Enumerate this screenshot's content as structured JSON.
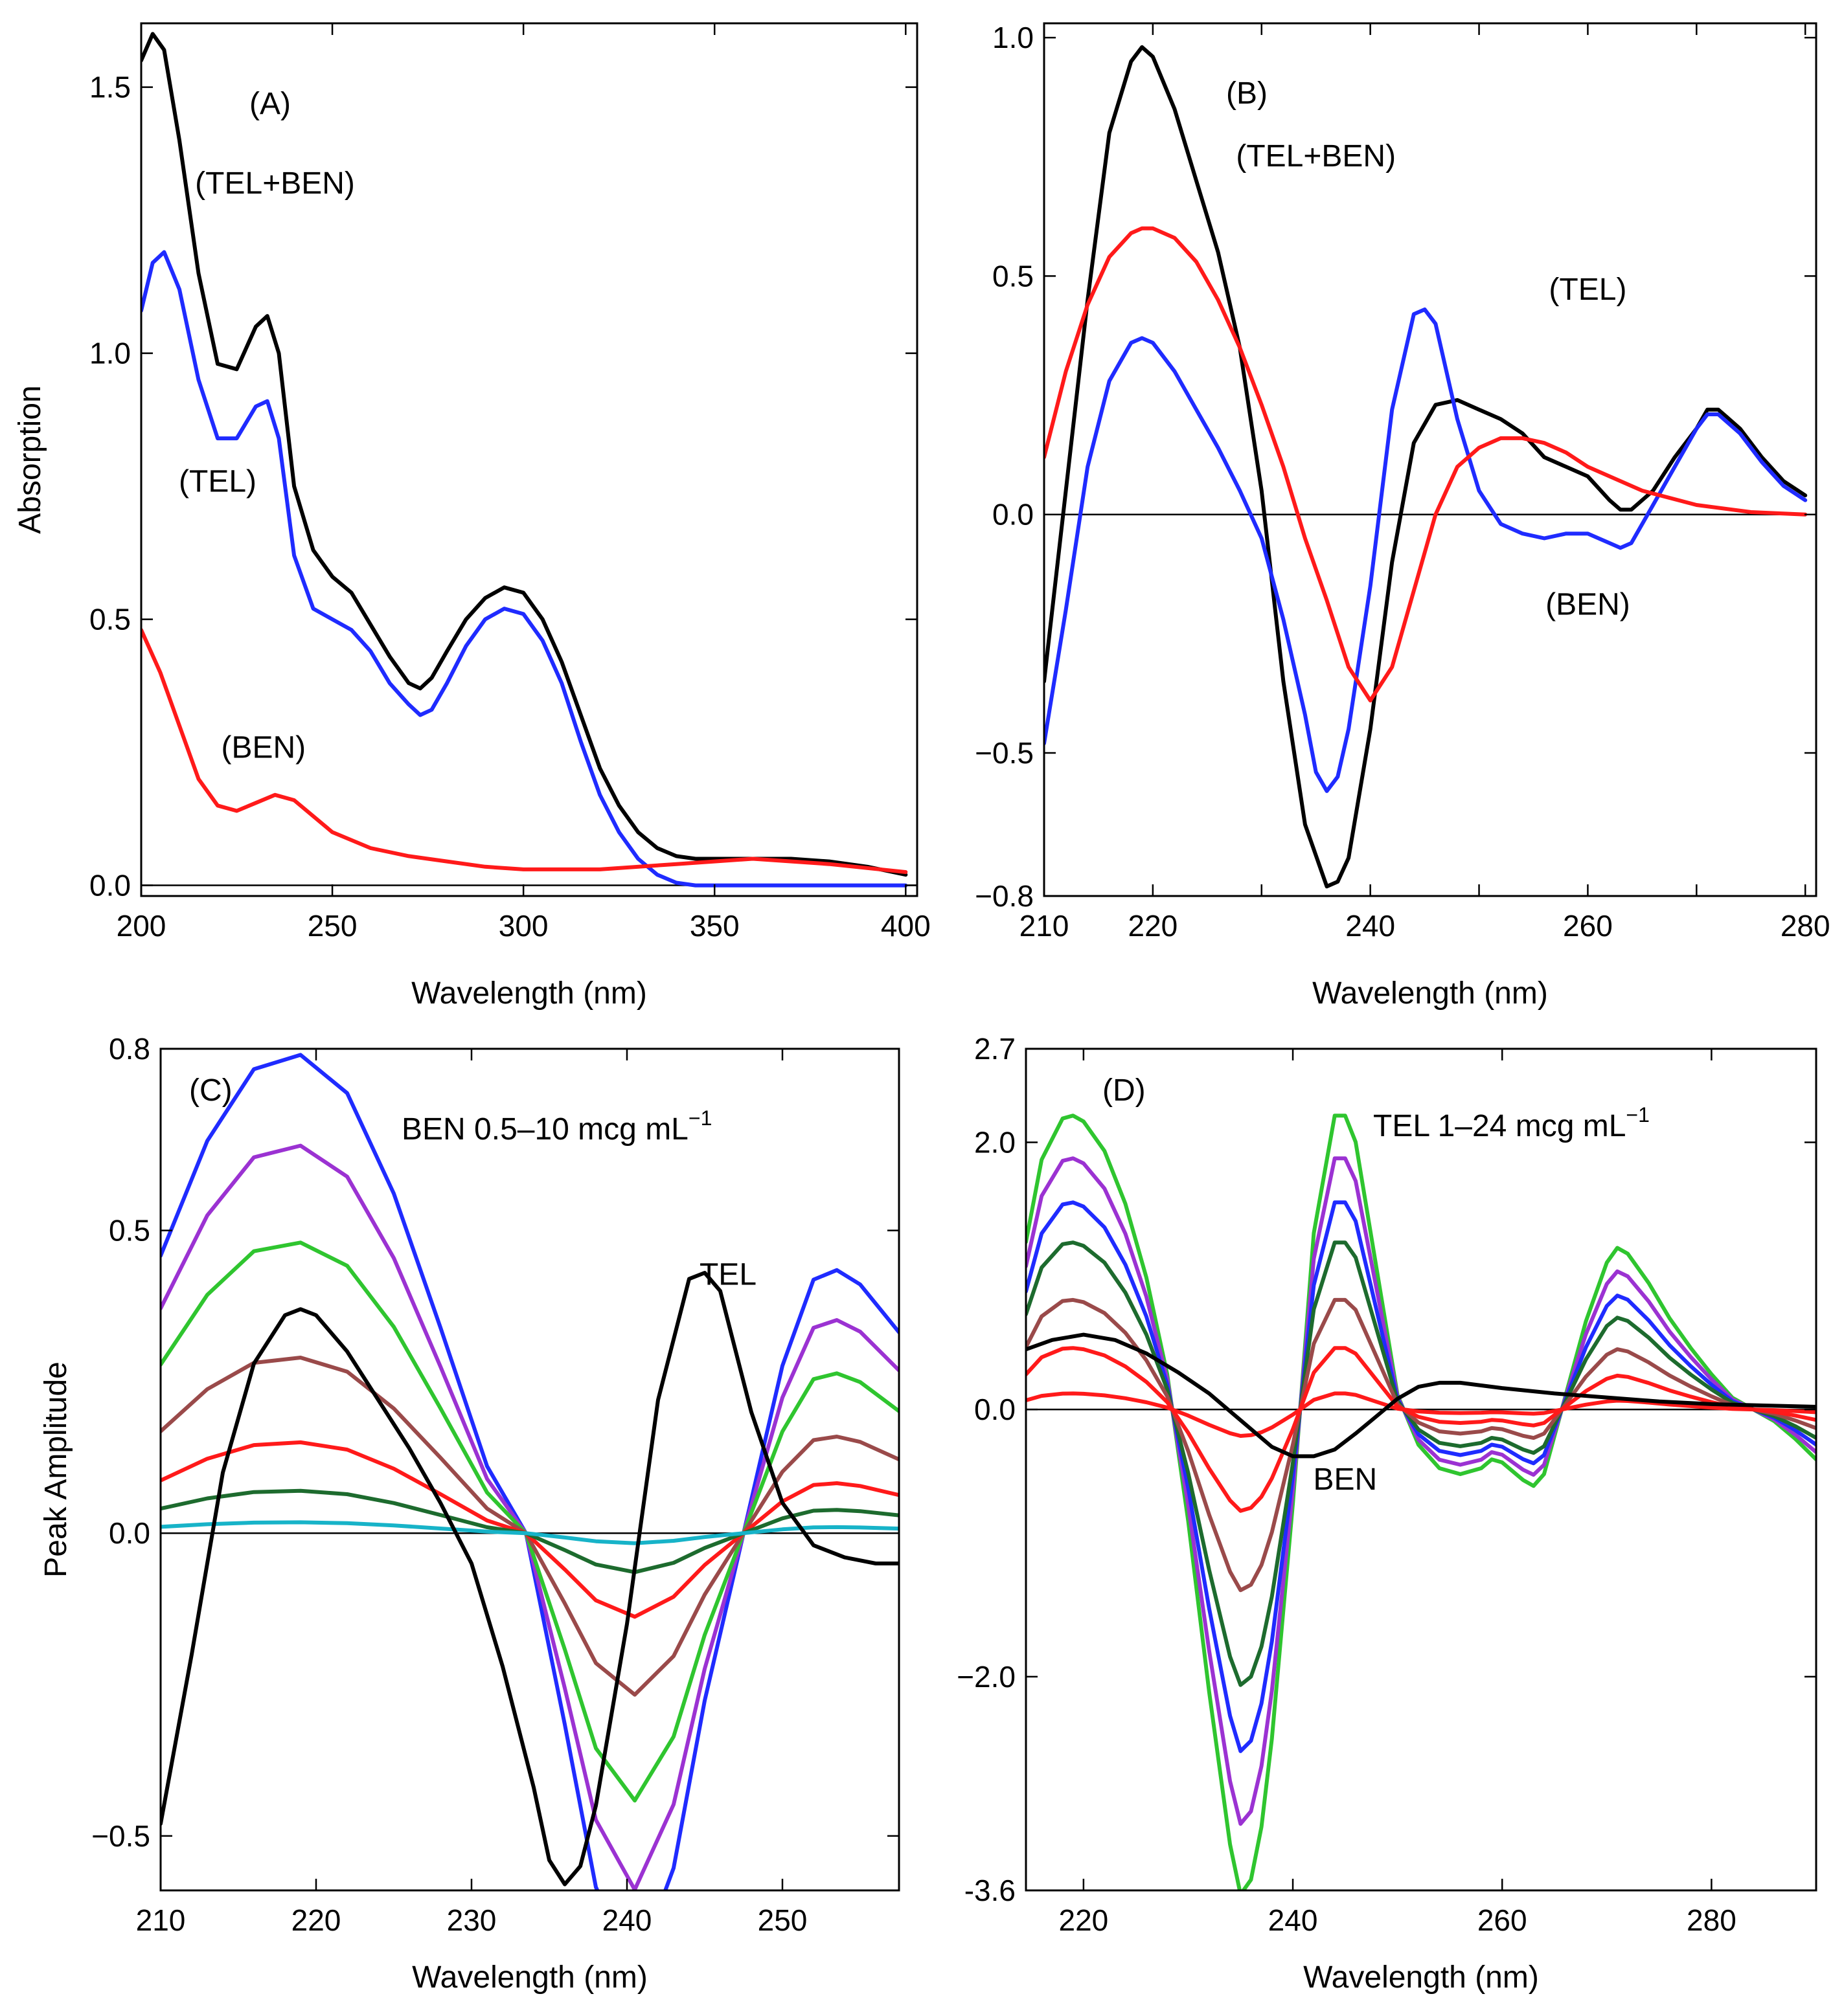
{
  "colors": {
    "black": "#000000",
    "blue": "#1f2bff",
    "red": "#ff1a1a",
    "purple": "#9b32d2",
    "green": "#2fc52f",
    "brown": "#9a4a4a",
    "dgreen": "#1d6b2e",
    "cyan": "#17b3c8"
  },
  "chart_data": [
    {
      "id": "A",
      "type": "line",
      "panel_label": "(A)",
      "xlabel": "Wavelength (nm)",
      "ylabel": "Absorption",
      "xlim": [
        200,
        403
      ],
      "ylim": [
        -0.02,
        1.62
      ],
      "xticks": [
        200,
        250,
        300,
        350,
        400
      ],
      "xtick_labels": [
        "200",
        "250",
        "300",
        "350",
        "400"
      ],
      "yticks": [
        0,
        0.5,
        1.0,
        1.5
      ],
      "ytick_labels": [
        "0.0",
        "0.5",
        "1.0",
        "1.5"
      ],
      "zero_line": true,
      "series": [
        {
          "name": "(TEL+BEN)",
          "color": "black",
          "x": [
            200,
            203,
            206,
            210,
            215,
            220,
            225,
            230,
            233,
            236,
            240,
            245,
            250,
            255,
            260,
            265,
            270,
            273,
            276,
            280,
            285,
            290,
            295,
            300,
            305,
            310,
            315,
            320,
            325,
            330,
            335,
            340,
            345,
            350,
            360,
            370,
            380,
            390,
            400
          ],
          "y": [
            1.55,
            1.6,
            1.57,
            1.4,
            1.15,
            0.98,
            0.97,
            1.05,
            1.07,
            1.0,
            0.75,
            0.63,
            0.58,
            0.55,
            0.49,
            0.43,
            0.38,
            0.37,
            0.39,
            0.44,
            0.5,
            0.54,
            0.56,
            0.55,
            0.5,
            0.42,
            0.32,
            0.22,
            0.15,
            0.1,
            0.07,
            0.055,
            0.05,
            0.05,
            0.05,
            0.05,
            0.045,
            0.035,
            0.02
          ]
        },
        {
          "name": "(TEL)",
          "color": "blue",
          "x": [
            200,
            203,
            206,
            210,
            215,
            220,
            225,
            230,
            233,
            236,
            240,
            245,
            250,
            255,
            260,
            265,
            270,
            273,
            276,
            280,
            285,
            290,
            295,
            300,
            305,
            310,
            315,
            320,
            325,
            330,
            335,
            340,
            345,
            350,
            360,
            370,
            380,
            390,
            400
          ],
          "y": [
            1.08,
            1.17,
            1.19,
            1.12,
            0.95,
            0.84,
            0.84,
            0.9,
            0.91,
            0.84,
            0.62,
            0.52,
            0.5,
            0.48,
            0.44,
            0.38,
            0.34,
            0.32,
            0.33,
            0.38,
            0.45,
            0.5,
            0.52,
            0.51,
            0.46,
            0.38,
            0.27,
            0.17,
            0.1,
            0.05,
            0.02,
            0.005,
            0,
            0,
            0,
            0,
            0,
            0,
            0
          ]
        },
        {
          "name": "(BEN)",
          "color": "red",
          "x": [
            200,
            205,
            210,
            215,
            220,
            225,
            230,
            235,
            240,
            245,
            250,
            260,
            270,
            280,
            290,
            300,
            320,
            340,
            360,
            380,
            400
          ],
          "y": [
            0.48,
            0.4,
            0.3,
            0.2,
            0.15,
            0.14,
            0.155,
            0.17,
            0.16,
            0.13,
            0.1,
            0.07,
            0.055,
            0.045,
            0.035,
            0.03,
            0.03,
            0.04,
            0.05,
            0.04,
            0.025
          ]
        }
      ],
      "annotations": [
        {
          "text": "(TEL+BEN)",
          "x": 235,
          "y": 1.3
        },
        {
          "text": "(TEL)",
          "x": 220,
          "y": 0.74
        },
        {
          "text": "(BEN)",
          "x": 232,
          "y": 0.24
        }
      ]
    },
    {
      "id": "B",
      "type": "line",
      "panel_label": "(B)",
      "xlabel": "Wavelength (nm)",
      "ylabel": "",
      "xlim": [
        210,
        281
      ],
      "ylim": [
        -0.8,
        1.03
      ],
      "xticks": [
        210,
        220,
        230,
        240,
        250,
        260,
        270,
        280
      ],
      "xtick_labels": [
        "210",
        "220",
        "",
        "240",
        "",
        "260",
        "",
        "280"
      ],
      "yticks": [
        -0.8,
        -0.5,
        0,
        0.5,
        1.0
      ],
      "ytick_labels": [
        "−0.8",
        "−0.5",
        "0.0",
        "0.5",
        "1.0"
      ],
      "zero_line": true,
      "series": [
        {
          "name": "(TEL+BEN)",
          "color": "black",
          "x": [
            210,
            212,
            214,
            216,
            218,
            219,
            220,
            222,
            224,
            226,
            228,
            230,
            232,
            234,
            236,
            237,
            238,
            240,
            242,
            244,
            246,
            248,
            250,
            252,
            254,
            256,
            258,
            260,
            262,
            263,
            264,
            266,
            268,
            270,
            271,
            272,
            274,
            276,
            278,
            280
          ],
          "y": [
            -0.35,
            0.05,
            0.45,
            0.8,
            0.95,
            0.98,
            0.96,
            0.85,
            0.7,
            0.55,
            0.35,
            0.05,
            -0.35,
            -0.65,
            -0.78,
            -0.77,
            -0.72,
            -0.45,
            -0.1,
            0.15,
            0.23,
            0.24,
            0.22,
            0.2,
            0.17,
            0.12,
            0.1,
            0.08,
            0.03,
            0.01,
            0.01,
            0.05,
            0.12,
            0.18,
            0.22,
            0.22,
            0.18,
            0.12,
            0.07,
            0.04
          ]
        },
        {
          "name": "(TEL)",
          "color": "blue",
          "x": [
            210,
            212,
            214,
            216,
            218,
            219,
            220,
            222,
            224,
            226,
            228,
            230,
            232,
            234,
            235,
            236,
            237,
            238,
            240,
            242,
            244,
            245,
            246,
            248,
            250,
            252,
            254,
            256,
            258,
            260,
            262,
            263,
            264,
            266,
            268,
            270,
            271,
            272,
            274,
            276,
            278,
            280
          ],
          "y": [
            -0.48,
            -0.2,
            0.1,
            0.28,
            0.36,
            0.37,
            0.36,
            0.3,
            0.22,
            0.14,
            0.05,
            -0.05,
            -0.22,
            -0.42,
            -0.54,
            -0.58,
            -0.55,
            -0.45,
            -0.15,
            0.22,
            0.42,
            0.43,
            0.4,
            0.2,
            0.05,
            -0.02,
            -0.04,
            -0.05,
            -0.04,
            -0.04,
            -0.06,
            -0.07,
            -0.06,
            0.02,
            0.1,
            0.18,
            0.21,
            0.21,
            0.17,
            0.11,
            0.06,
            0.03
          ]
        },
        {
          "name": "(BEN)",
          "color": "red",
          "x": [
            210,
            212,
            214,
            216,
            218,
            219,
            220,
            222,
            224,
            226,
            228,
            230,
            232,
            234,
            236,
            238,
            240,
            242,
            244,
            246,
            248,
            250,
            252,
            254,
            256,
            258,
            260,
            265,
            270,
            275,
            280
          ],
          "y": [
            0.12,
            0.3,
            0.44,
            0.54,
            0.59,
            0.6,
            0.6,
            0.58,
            0.53,
            0.45,
            0.35,
            0.23,
            0.1,
            -0.05,
            -0.18,
            -0.32,
            -0.39,
            -0.32,
            -0.16,
            0.0,
            0.1,
            0.14,
            0.16,
            0.16,
            0.15,
            0.13,
            0.1,
            0.05,
            0.02,
            0.005,
            0
          ]
        }
      ],
      "annotations": [
        {
          "text": "(TEL+BEN)",
          "x": 235,
          "y": 0.73
        },
        {
          "text": "(TEL)",
          "x": 260,
          "y": 0.45
        },
        {
          "text": "(BEN)",
          "x": 260,
          "y": -0.21
        }
      ]
    },
    {
      "id": "C",
      "type": "line",
      "panel_label": "(C)",
      "xlabel": "Wavelength (nm)",
      "ylabel": "Peak Amplitude",
      "xlim": [
        210,
        257.5
      ],
      "ylim": [
        -0.59,
        0.8
      ],
      "xticks": [
        210,
        220,
        230,
        240,
        250
      ],
      "xtick_labels": [
        "210",
        "220",
        "230",
        "240",
        "250"
      ],
      "yticks": [
        -0.5,
        0,
        0.5,
        0.8
      ],
      "ytick_labels": [
        "−0.5",
        "0.0",
        "0.5",
        "0.8"
      ],
      "zero_line": true,
      "title_text": "BEN 0.5–10 mcg mL",
      "title_sup": "−1",
      "ben_shape_x": [
        210,
        213,
        216,
        219,
        222,
        225,
        228,
        231,
        233.5,
        236,
        238,
        240.5,
        243,
        245,
        247.5,
        250,
        252,
        253.5,
        255,
        257.5
      ],
      "ben_shape_y": [
        0.58,
        0.82,
        0.97,
        1.0,
        0.92,
        0.71,
        0.43,
        0.14,
        0,
        -0.4,
        -0.74,
        -0.92,
        -0.7,
        -0.35,
        0,
        0.35,
        0.53,
        0.55,
        0.52,
        0.42
      ],
      "ben_scales": [
        {
          "color": "blue",
          "scale": 0.79
        },
        {
          "color": "purple",
          "scale": 0.64
        },
        {
          "color": "green",
          "scale": 0.48
        },
        {
          "color": "brown",
          "scale": 0.29
        },
        {
          "color": "red",
          "scale": 0.15
        },
        {
          "color": "dgreen",
          "scale": 0.07
        },
        {
          "color": "cyan",
          "scale": 0.018
        }
      ],
      "series": [
        {
          "name": "TEL",
          "color": "black",
          "x": [
            210,
            212,
            214,
            216,
            218,
            219,
            220,
            222,
            224,
            226,
            228,
            230,
            232,
            234,
            235,
            236,
            237,
            238,
            240,
            242,
            244,
            245,
            246,
            248,
            250,
            252,
            254,
            256,
            257.5
          ],
          "y": [
            -0.48,
            -0.2,
            0.1,
            0.28,
            0.36,
            0.37,
            0.36,
            0.3,
            0.22,
            0.14,
            0.05,
            -0.05,
            -0.22,
            -0.42,
            -0.54,
            -0.58,
            -0.55,
            -0.45,
            -0.15,
            0.22,
            0.42,
            0.43,
            0.4,
            0.2,
            0.05,
            -0.02,
            -0.04,
            -0.05,
            -0.05
          ]
        }
      ],
      "annotations": [
        {
          "text": "TEL",
          "x": 246.5,
          "y": 0.41
        }
      ]
    },
    {
      "id": "D",
      "type": "line",
      "panel_label": "(D)",
      "xlabel": "Wavelength (nm)",
      "ylabel": "",
      "xlim": [
        214.5,
        290
      ],
      "ylim": [
        -3.6,
        2.7
      ],
      "xticks": [
        220,
        240,
        260,
        280
      ],
      "xtick_labels": [
        "220",
        "240",
        "260",
        "280"
      ],
      "yticks": [
        -3.6,
        -2.0,
        0,
        2.0,
        2.7
      ],
      "ytick_labels": [
        "-3.6",
        "−2.0",
        "0.0",
        "2.0",
        "2.7"
      ],
      "zero_line": true,
      "title_text": "TEL 1–24 mcg mL",
      "title_sup": "−1",
      "tel_shape_x": [
        214.5,
        216,
        218,
        219,
        220,
        222,
        224,
        226,
        228,
        230,
        232,
        234,
        235,
        236,
        237,
        238,
        240,
        242,
        244,
        245,
        246,
        248,
        250,
        252,
        254,
        256,
        258,
        259,
        260,
        262,
        263,
        264,
        266,
        268,
        270,
        271,
        272,
        274,
        276,
        278,
        280,
        282,
        284,
        286,
        288,
        290
      ],
      "tel_shape_y": [
        0.57,
        0.85,
        0.99,
        1.0,
        0.98,
        0.88,
        0.7,
        0.45,
        0.12,
        -0.38,
        -0.96,
        -1.48,
        -1.65,
        -1.6,
        -1.42,
        -1.12,
        -0.32,
        0.6,
        1.0,
        1.0,
        0.91,
        0.48,
        0.05,
        -0.12,
        -0.2,
        -0.22,
        -0.2,
        -0.17,
        -0.18,
        -0.24,
        -0.26,
        -0.22,
        0.04,
        0.3,
        0.5,
        0.55,
        0.53,
        0.43,
        0.31,
        0.21,
        0.12,
        0.04,
        0,
        -0.04,
        -0.1,
        -0.17
      ],
      "tel_scales": [
        {
          "color": "green",
          "scale": 2.2
        },
        {
          "color": "purple",
          "scale": 1.88
        },
        {
          "color": "blue",
          "scale": 1.55
        },
        {
          "color": "dgreen",
          "scale": 1.25
        },
        {
          "color": "brown",
          "scale": 0.82
        },
        {
          "color": "red",
          "scale": 0.46
        },
        {
          "color": "red",
          "scale": 0.12
        }
      ],
      "series": [
        {
          "name": "BEN",
          "color": "black",
          "x": [
            214.5,
            217,
            220,
            223,
            226,
            229,
            232,
            235,
            238,
            240,
            242,
            244,
            246,
            248,
            250,
            252,
            254,
            256,
            258,
            260,
            265,
            270,
            275,
            280,
            285,
            290
          ],
          "y": [
            0.45,
            0.52,
            0.56,
            0.52,
            0.42,
            0.28,
            0.12,
            -0.08,
            -0.28,
            -0.35,
            -0.35,
            -0.3,
            -0.18,
            -0.05,
            0.08,
            0.17,
            0.2,
            0.2,
            0.18,
            0.16,
            0.12,
            0.09,
            0.06,
            0.04,
            0.03,
            0.02
          ]
        }
      ],
      "annotations": [
        {
          "text": "BEN",
          "x": 245,
          "y": -0.6
        }
      ]
    }
  ]
}
